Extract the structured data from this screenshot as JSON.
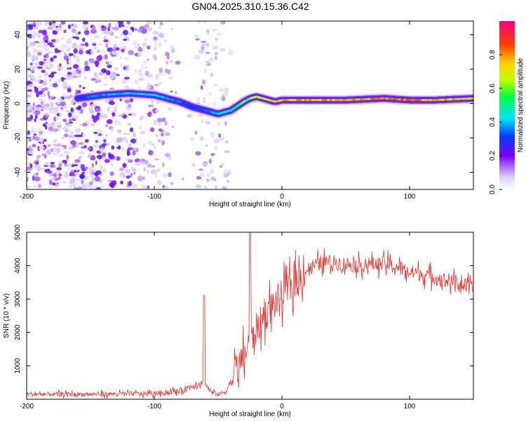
{
  "title": "GN04.2025.310.15.36.C42",
  "chart_data": [
    {
      "type": "heatmap",
      "xlabel": "Height of straight line (km)",
      "ylabel": "Frequency (Hz)",
      "xlim": [
        -200,
        150
      ],
      "ylim": [
        -50,
        48
      ],
      "xticks": [
        -200,
        -100,
        0,
        100
      ],
      "yticks": [
        -40,
        -20,
        0,
        20,
        40
      ],
      "colorbar": {
        "label": "Normalized spectral amplitude",
        "range": [
          0,
          1
        ],
        "ticks": [
          "0.0",
          "0.2",
          "0.4",
          "0.6",
          "0.8"
        ],
        "tick_values": [
          0,
          0.2,
          0.4,
          0.6,
          0.8
        ]
      },
      "ridge": {
        "x": [
          -160,
          -140,
          -120,
          -100,
          -90,
          -80,
          -70,
          -60,
          -50,
          -45,
          -40,
          -30,
          -25,
          -20,
          -15,
          -10,
          -5,
          0,
          20,
          50,
          80,
          100,
          120,
          150
        ],
        "freq": [
          3,
          5,
          6,
          5,
          3,
          1,
          -2,
          -4,
          -6,
          -5,
          -4,
          1,
          3,
          4,
          3,
          2,
          1,
          2,
          2,
          2,
          3,
          2,
          2,
          3
        ],
        "amplitude": [
          0.3,
          0.4,
          0.4,
          0.45,
          0.4,
          0.35,
          0.3,
          0.35,
          0.45,
          0.5,
          0.5,
          0.6,
          0.65,
          0.7,
          0.75,
          0.8,
          0.8,
          0.8,
          0.8,
          0.8,
          0.85,
          0.85,
          0.8,
          0.75
        ]
      },
      "noise_region_x": [
        -200,
        -40
      ]
    },
    {
      "type": "line",
      "xlabel": "Height of straight line (km)",
      "ylabel": "SNR (10 * v/v)",
      "xlim": [
        -200,
        150
      ],
      "ylim": [
        0,
        5000
      ],
      "xticks": [
        -200,
        -100,
        0,
        100
      ],
      "yticks": [
        1000,
        2000,
        3000,
        4000,
        5000
      ],
      "series": [
        {
          "name": "SNR",
          "color": "#e8302b",
          "x": [
            -200,
            -150,
            -100,
            -80,
            -70,
            -65,
            -60,
            -55,
            -50,
            -45,
            -40,
            -35,
            -30,
            -25,
            -20,
            -15,
            -10,
            -5,
            0,
            10,
            20,
            25,
            30,
            40,
            50,
            60,
            70,
            80,
            90,
            100,
            110,
            120,
            130,
            140,
            150
          ],
          "y": [
            150,
            150,
            170,
            250,
            400,
            500,
            450,
            200,
            150,
            200,
            500,
            900,
            1300,
            1700,
            2100,
            2400,
            2700,
            2900,
            3100,
            3500,
            3900,
            4000,
            4100,
            4100,
            4050,
            4000,
            4050,
            4050,
            3950,
            3800,
            3750,
            3650,
            3550,
            3450,
            3300
          ],
          "spikes": [
            {
              "x": -61,
              "y": 3100
            },
            {
              "x": -25,
              "y": 5000
            }
          ]
        }
      ]
    }
  ]
}
